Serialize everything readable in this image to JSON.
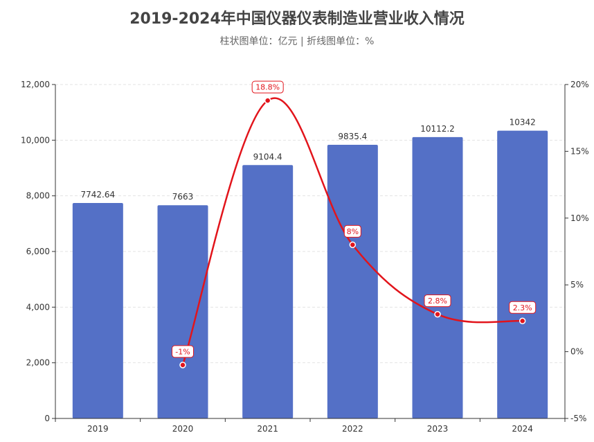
{
  "chart_data": {
    "type": "bar",
    "title": "2019-2024年中国仪器仪表制造业营业收入情况",
    "subtitle": "柱状图单位：亿元 | 折线图单位：%",
    "categories": [
      "2019",
      "2020",
      "2021",
      "2022",
      "2023",
      "2024"
    ],
    "series": [
      {
        "type": "bar",
        "values": [
          7742.64,
          7663,
          9104.4,
          9835.4,
          10112.2,
          10342
        ],
        "labels": [
          "7742.64",
          "7663",
          "9104.4",
          "9835.4",
          "10112.2",
          "10342"
        ],
        "color": "#5470c6"
      },
      {
        "type": "line",
        "values": [
          null,
          -1,
          18.8,
          8,
          2.8,
          2.3
        ],
        "labels": [
          "",
          "-1%",
          "18.8%",
          "8%",
          "2.8%",
          "2.3%"
        ],
        "color": "#e2141b"
      }
    ],
    "y_left": {
      "ylim": [
        0,
        12000
      ],
      "ticks": [
        0,
        2000,
        4000,
        6000,
        8000,
        10000,
        12000
      ],
      "tick_labels": [
        "0",
        "2,000",
        "4,000",
        "6,000",
        "8,000",
        "10,000",
        "12,000"
      ]
    },
    "y_right": {
      "ylim": [
        -5,
        20
      ],
      "ticks": [
        -5,
        0,
        5,
        10,
        15,
        20
      ],
      "tick_labels": [
        "-5%",
        "0%",
        "5%",
        "10%",
        "15%",
        "20%"
      ]
    },
    "grid": true
  }
}
